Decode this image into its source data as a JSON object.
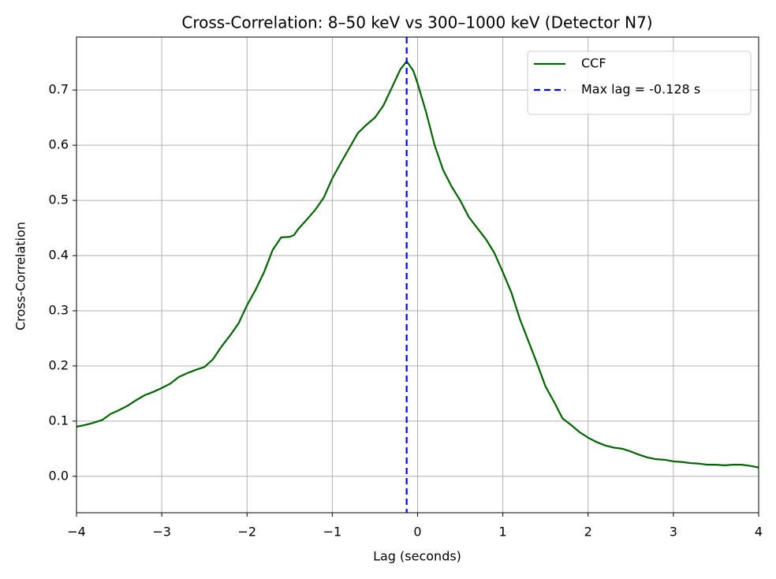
{
  "chart_data": {
    "type": "line",
    "title": "Cross-Correlation: 8–50 keV vs 300–1000 keV (Detector N7)",
    "x_label": "Lag (seconds)",
    "y_label": "Cross-Correlation",
    "xlim": [
      -4,
      4
    ],
    "ylim": [
      -0.066,
      0.796
    ],
    "xticks": [
      {
        "value": -4,
        "label": "−4"
      },
      {
        "value": -3,
        "label": "−3"
      },
      {
        "value": -2,
        "label": "−2"
      },
      {
        "value": -1,
        "label": "−1"
      },
      0,
      1,
      2,
      3,
      4
    ],
    "yticks": [
      {
        "value": 0,
        "label": "0.0"
      },
      0.1,
      0.2,
      0.3,
      0.4,
      0.5,
      0.6,
      0.7
    ],
    "grid": true,
    "legend": "upper right",
    "series": [
      {
        "name": "CCF",
        "color": "#006400",
        "x": [
          -4,
          -3.9,
          -3.8,
          -3.7,
          -3.6,
          -3.5,
          -3.4,
          -3.3,
          -3.2,
          -3.1,
          -3,
          -2.9,
          -2.8,
          -2.7,
          -2.6,
          -2.5,
          -2.4,
          -2.3,
          -2.2,
          -2.1,
          -2,
          -1.9,
          -1.8,
          -1.7,
          -1.6,
          -1.5,
          -1.45,
          -1.4,
          -1.3,
          -1.2,
          -1.1,
          -1,
          -0.9,
          -0.8,
          -0.7,
          -0.6,
          -0.5,
          -0.4,
          -0.3,
          -0.2,
          -0.128,
          -0.05,
          0,
          0.1,
          0.2,
          0.3,
          0.4,
          0.5,
          0.6,
          0.7,
          0.8,
          0.9,
          1,
          1.1,
          1.2,
          1.3,
          1.4,
          1.5,
          1.6,
          1.7,
          1.8,
          1.9,
          2,
          2.1,
          2.2,
          2.3,
          2.4,
          2.5,
          2.6,
          2.7,
          2.8,
          2.9,
          3,
          3.1,
          3.2,
          3.3,
          3.4,
          3.5,
          3.6,
          3.7,
          3.8,
          3.9,
          4
        ],
        "values": [
          0.09,
          0.093,
          0.097,
          0.102,
          0.113,
          0.12,
          0.128,
          0.138,
          0.147,
          0.153,
          0.16,
          0.168,
          0.18,
          0.187,
          0.193,
          0.198,
          0.212,
          0.235,
          0.255,
          0.277,
          0.31,
          0.338,
          0.37,
          0.41,
          0.433,
          0.434,
          0.437,
          0.448,
          0.465,
          0.483,
          0.505,
          0.54,
          0.568,
          0.595,
          0.622,
          0.637,
          0.65,
          0.672,
          0.705,
          0.738,
          0.752,
          0.735,
          0.712,
          0.66,
          0.6,
          0.555,
          0.525,
          0.5,
          0.47,
          0.45,
          0.43,
          0.405,
          0.37,
          0.333,
          0.285,
          0.245,
          0.205,
          0.163,
          0.135,
          0.105,
          0.093,
          0.08,
          0.07,
          0.062,
          0.056,
          0.052,
          0.05,
          0.045,
          0.039,
          0.034,
          0.031,
          0.03,
          0.027,
          0.026,
          0.024,
          0.023,
          0.021,
          0.021,
          0.02,
          0.021,
          0.021,
          0.019,
          0.016
        ]
      }
    ],
    "vlines": [
      {
        "name": "Max lag = -0.128 s",
        "x": -0.128,
        "color": "#0000ff",
        "style": "dashed"
      }
    ]
  }
}
